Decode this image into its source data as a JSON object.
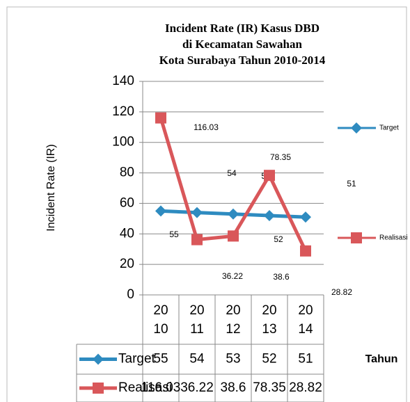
{
  "chart_data": {
    "type": "line",
    "title_lines": [
      "Incident Rate (IR) Kasus DBD",
      "di Kecamatan Sawahan",
      "Kota Surabaya Tahun 2010-2014"
    ],
    "ylabel": "Incident Rate (IR)",
    "xlabel": "Tahun",
    "categories": [
      "2010",
      "2011",
      "2012",
      "2013",
      "2014"
    ],
    "series": [
      {
        "name": "Target",
        "color": "#2e8bc0",
        "marker": "diamond",
        "values": [
          55,
          54,
          53,
          52,
          51
        ]
      },
      {
        "name": "Realisasi",
        "color": "#d9575a",
        "marker": "square",
        "values": [
          116.03,
          36.22,
          38.6,
          78.35,
          28.82
        ]
      }
    ],
    "ylim": [
      0,
      140
    ],
    "yticks": [
      0,
      20,
      40,
      60,
      80,
      100,
      120,
      140
    ],
    "grid": true,
    "legend": "right",
    "data_table": true
  }
}
